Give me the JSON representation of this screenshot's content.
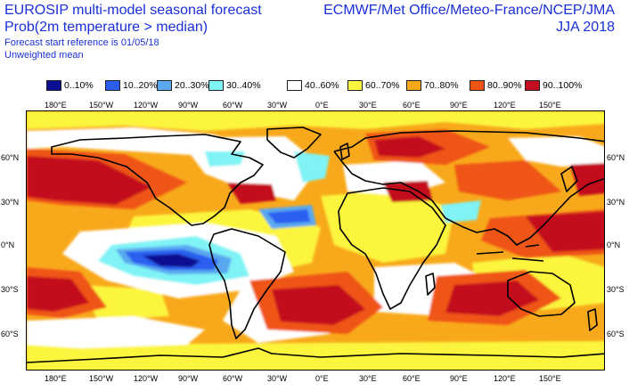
{
  "header": {
    "title_line1": "EUROSIP multi-model seasonal forecast",
    "title_line2": "Prob(2m temperature > median)",
    "forecast_ref": "Forecast start reference is 01/05/18",
    "weighting": "Unweighted mean",
    "centres": "ECMWF/Met Office/Meteo-France/NCEP/JMA",
    "season": "JJA 2018"
  },
  "legend": [
    {
      "label": "0..10%",
      "color": "#0b0e92"
    },
    {
      "label": "10..20%",
      "color": "#2b5ef0"
    },
    {
      "label": "20..30%",
      "color": "#5aa8ef"
    },
    {
      "label": "30..40%",
      "color": "#7ff3f5"
    },
    {
      "label": "40..60%",
      "color": "#ffffff"
    },
    {
      "label": "60..70%",
      "color": "#fbf53d"
    },
    {
      "label": "70..80%",
      "color": "#f8a91b"
    },
    {
      "label": "80..90%",
      "color": "#ef5414"
    },
    {
      "label": "90..100%",
      "color": "#c40d1f"
    }
  ],
  "axes": {
    "lon_labels": [
      "180°E",
      "150°W",
      "120°W",
      "90°W",
      "60°W",
      "30°W",
      "0°E",
      "30°E",
      "60°E",
      "90°E",
      "120°E",
      "150°E"
    ],
    "lat_labels": [
      "60°N",
      "30°N",
      "0°N",
      "30°S",
      "60°S"
    ]
  }
}
